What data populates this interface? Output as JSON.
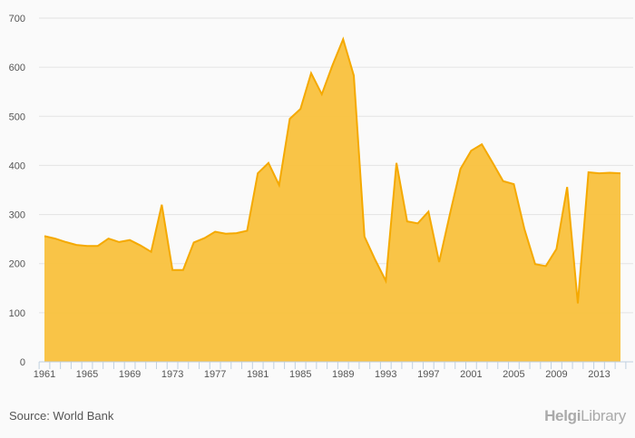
{
  "chart_data": {
    "type": "area",
    "title": "",
    "xlabel": "",
    "ylabel": "",
    "ylim": [
      0,
      700
    ],
    "yticks": [
      0,
      100,
      200,
      300,
      400,
      500,
      600,
      700
    ],
    "xticks": [
      1961,
      1965,
      1969,
      1973,
      1977,
      1981,
      1985,
      1989,
      1993,
      1997,
      2001,
      2005,
      2009,
      2013
    ],
    "grid": true,
    "color": "#f9c13d",
    "line_color": "#f5a900",
    "x": [
      1961,
      1962,
      1963,
      1964,
      1965,
      1966,
      1967,
      1968,
      1969,
      1970,
      1971,
      1972,
      1973,
      1974,
      1975,
      1976,
      1977,
      1978,
      1979,
      1980,
      1981,
      1982,
      1983,
      1984,
      1985,
      1986,
      1987,
      1988,
      1989,
      1990,
      1991,
      1992,
      1993,
      1994,
      1995,
      1996,
      1997,
      1998,
      1999,
      2000,
      2001,
      2002,
      2003,
      2004,
      2005,
      2006,
      2007,
      2008,
      2009,
      2010,
      2011,
      2012,
      2013,
      2014,
      2015
    ],
    "values": [
      256,
      251,
      244,
      238,
      236,
      236,
      251,
      244,
      248,
      237,
      224,
      320,
      187,
      187,
      243,
      252,
      265,
      261,
      262,
      267,
      384,
      405,
      360,
      495,
      515,
      588,
      545,
      604,
      657,
      583,
      255,
      208,
      165,
      405,
      286,
      282,
      306,
      203,
      300,
      393,
      430,
      443,
      406,
      368,
      362,
      270,
      199,
      195,
      230,
      356,
      119,
      386,
      384,
      385,
      384
    ]
  },
  "footer": {
    "source": "Source: World Bank",
    "logo_bold": "Helgi",
    "logo_rest": "Library"
  }
}
